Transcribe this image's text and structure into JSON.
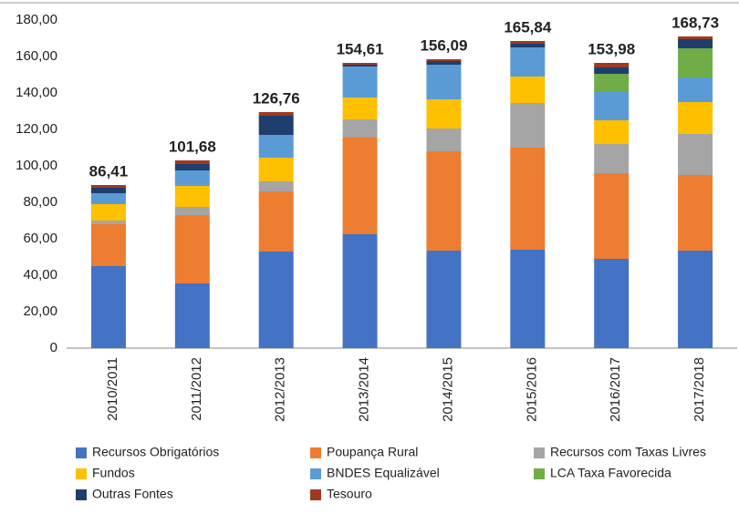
{
  "chart_data": {
    "type": "stacked_bar",
    "categories": [
      "2010/2011",
      "2011/2012",
      "2012/2013",
      "2013/2014",
      "2014/2015",
      "2015/2016",
      "2016/2017",
      "2017/2018"
    ],
    "series": [
      {
        "name": "Recursos Obrigatórios",
        "color": "#4472c4",
        "values": [
          45,
          35.5,
          53,
          62.5,
          53.5,
          54,
          49,
          53.5
        ]
      },
      {
        "name": "Poupança Rural",
        "color": "#ed7d31",
        "values": [
          23,
          37.5,
          33,
          53,
          54.5,
          56,
          47,
          41.5
        ]
      },
      {
        "name": "Recursos com Taxas Livres",
        "color": "#a5a5a5",
        "values": [
          2,
          4.5,
          5.5,
          10,
          12.5,
          24.5,
          16,
          22.5
        ]
      },
      {
        "name": "Fundos",
        "color": "#ffc000",
        "values": [
          9,
          11.5,
          13,
          12,
          16,
          14.5,
          13,
          17.5
        ]
      },
      {
        "name": "BNDES Equalizável",
        "color": "#5b9bd5",
        "values": [
          6,
          8.5,
          12.5,
          17,
          19,
          16,
          15.5,
          13.5
        ]
      },
      {
        "name": "LCA Taxa Favorecida",
        "color": "#70ad47",
        "values": [
          0,
          0,
          0,
          0,
          0,
          0,
          10,
          16
        ]
      },
      {
        "name": "Outras Fontes",
        "color": "#1f3e6e",
        "values": [
          3,
          3.5,
          10.5,
          1,
          2,
          2,
          3.5,
          5
        ]
      },
      {
        "name": "Tesouro",
        "color": "#9e3b1f",
        "values": [
          1.5,
          2,
          2,
          1,
          1,
          1.5,
          2.5,
          1.5
        ]
      }
    ],
    "totals": [
      86.41,
      101.68,
      126.76,
      154.61,
      156.09,
      165.84,
      153.98,
      168.73
    ],
    "value_labels": [
      "86,41",
      "101,68",
      "126,76",
      "154,61",
      "156,09",
      "165,84",
      "153,98",
      "168,73"
    ],
    "ylim": [
      0,
      180
    ],
    "yticks": [
      0,
      {
        "value": 20,
        "label": "20,00"
      },
      {
        "value": 40,
        "label": "40,00"
      },
      {
        "value": 60,
        "label": "60,00"
      },
      {
        "value": 80,
        "label": "80,00"
      },
      {
        "value": 100,
        "label": "100,00"
      },
      {
        "value": 120,
        "label": "120,00"
      },
      {
        "value": 140,
        "label": "140,00"
      },
      {
        "value": 160,
        "label": "160,00"
      },
      {
        "value": 180,
        "label": "180,00"
      }
    ],
    "grid": false
  }
}
